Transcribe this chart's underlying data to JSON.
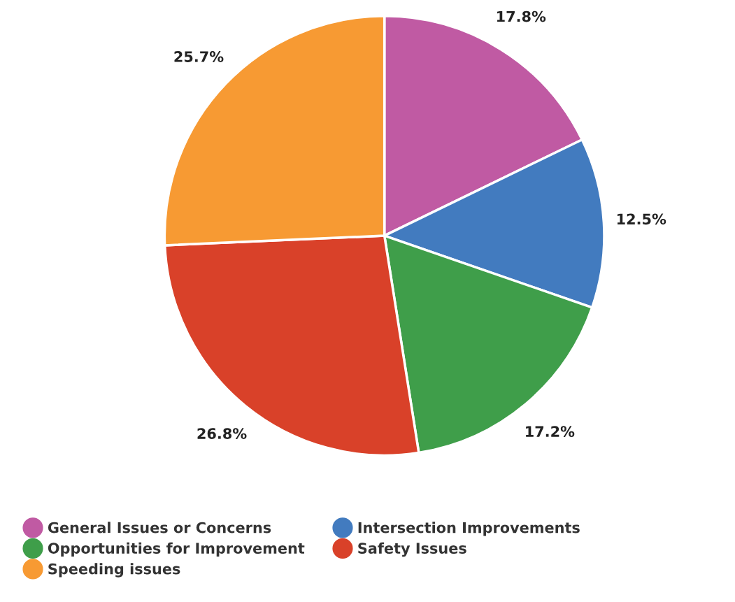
{
  "chart_data": {
    "type": "pie",
    "categories": [
      "General Issues or Concerns",
      "Intersection Improvements",
      "Opportunities for Improvement",
      "Safety Issues",
      "Speeding issues"
    ],
    "values": [
      17.8,
      12.5,
      17.2,
      26.8,
      25.7
    ],
    "value_labels": [
      "17.8%",
      "12.5%",
      "17.2%",
      "26.8%",
      "25.7%"
    ],
    "colors": [
      "#c05aa3",
      "#427bbf",
      "#3f9e4a",
      "#d94129",
      "#f79a33"
    ],
    "legend": "bottom"
  }
}
